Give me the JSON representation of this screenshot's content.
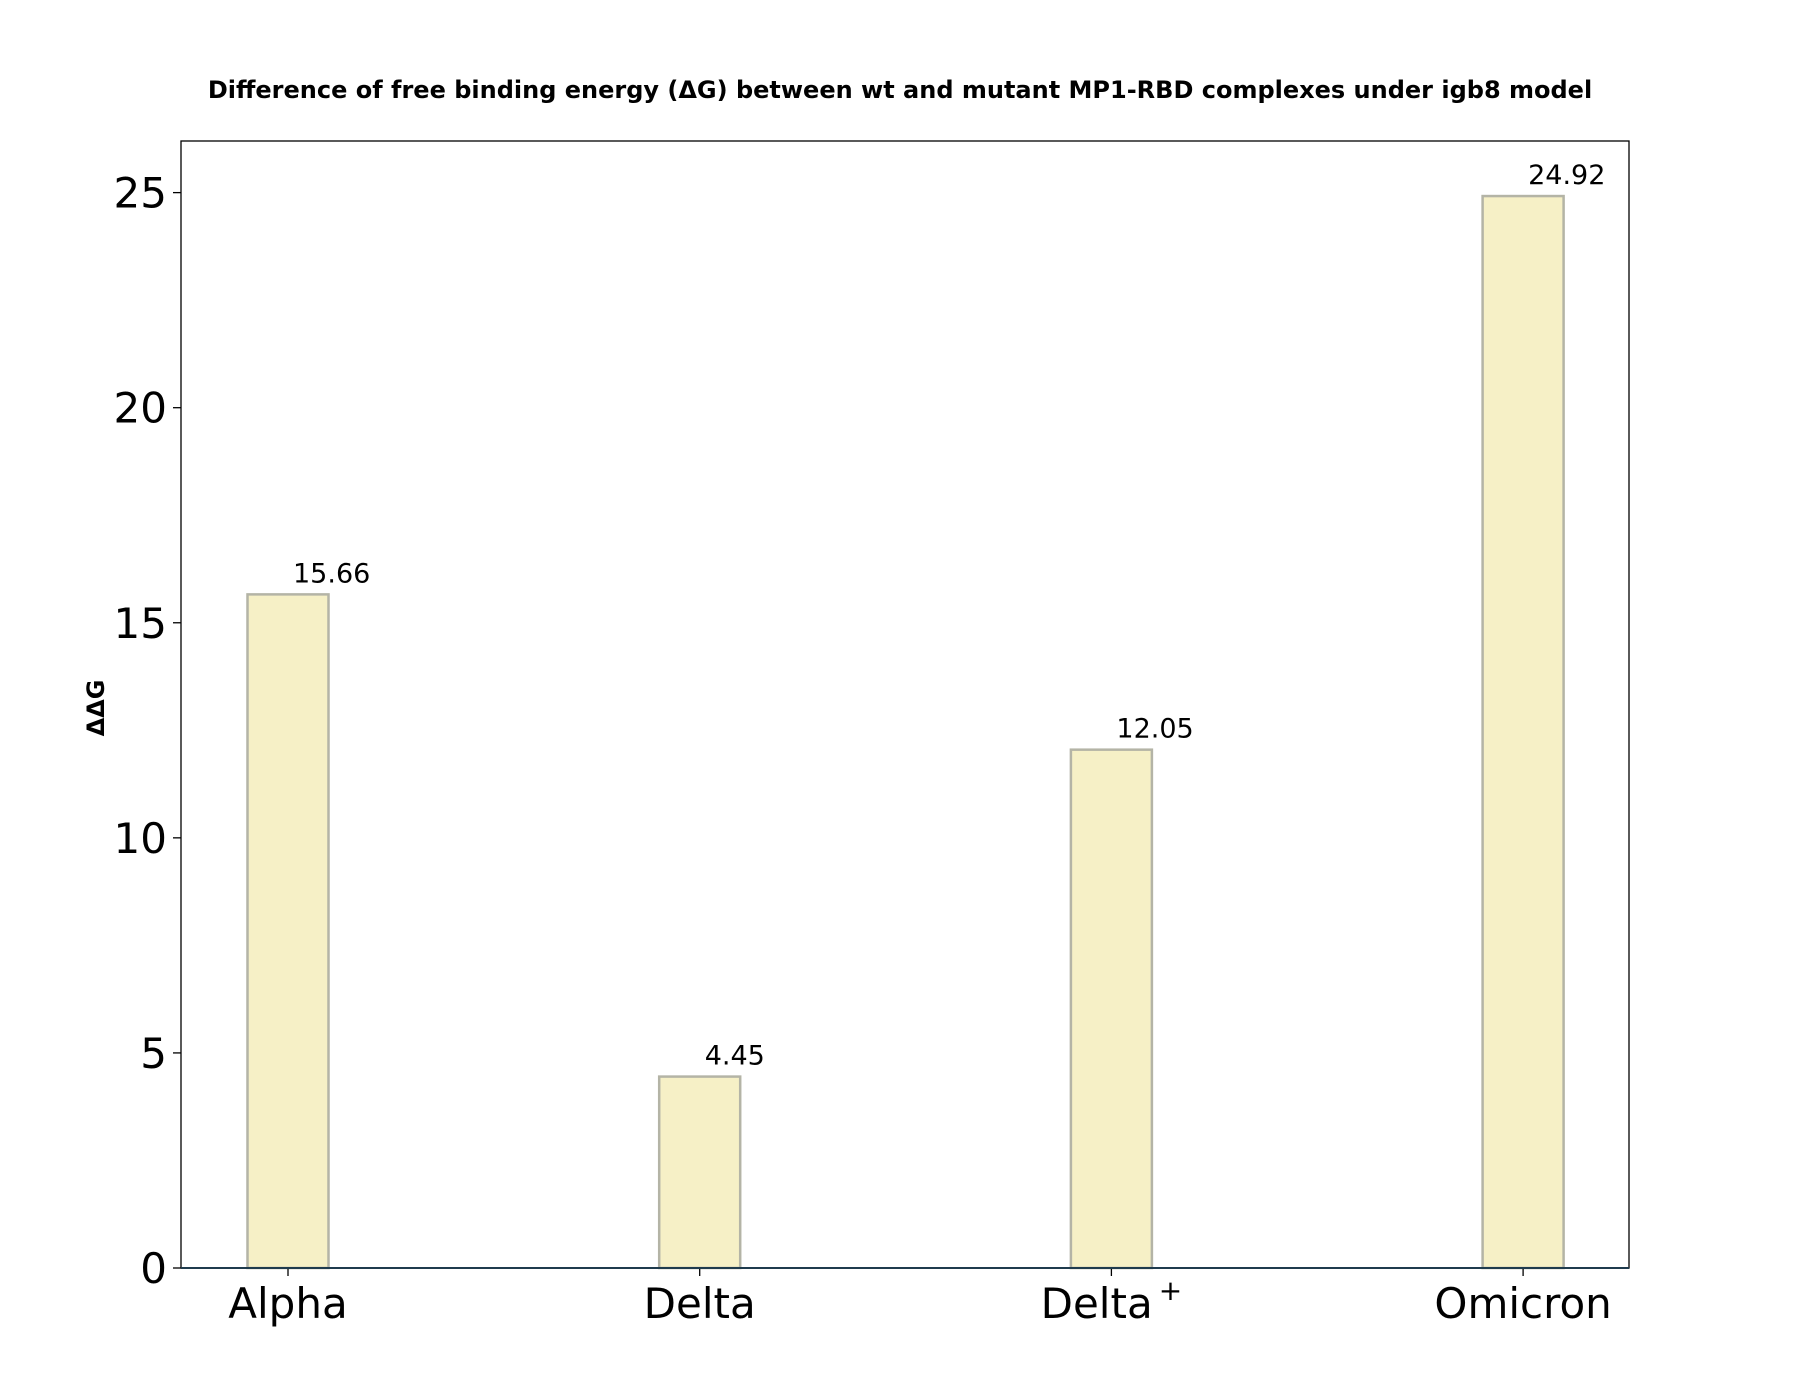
{
  "chart_data": {
    "type": "bar",
    "title": "Difference of free binding energy (ΔG) between wt and mutant MP1-RBD complexes under igb8 model",
    "xlabel": "",
    "ylabel": "ΔΔG",
    "categories": [
      "Alpha",
      "Delta",
      "Delta",
      "Omicron"
    ],
    "category_superscripts": [
      "",
      "",
      "+",
      ""
    ],
    "values": [
      15.66,
      4.45,
      12.05,
      24.92
    ],
    "value_labels": [
      "15.66",
      "4.45",
      "12.05",
      "24.92"
    ],
    "ylim": [
      0,
      26.2
    ],
    "yticks": [
      0,
      5,
      10,
      15,
      20,
      25
    ],
    "ytick_labels": [
      "0",
      "5",
      "10",
      "15",
      "20",
      "25"
    ],
    "grid": false,
    "legend": "none",
    "bar_fill": "#f6f0c6",
    "bar_edge": "#b4b4a6",
    "axis_color": "#000000",
    "baseline_color": "#1f3b4d"
  }
}
